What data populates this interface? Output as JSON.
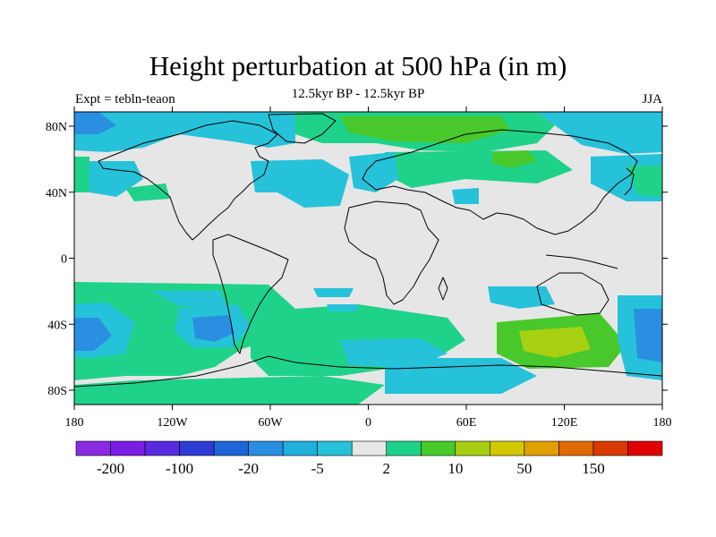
{
  "title": "Height perturbation at 500 hPa (in m)",
  "subtitle": "12.5kyr BP - 12.5kyr BP",
  "left_label": "Expt = tebln-teaon",
  "right_label": "JJA",
  "lat_ticks": [
    "80N",
    "40N",
    "0",
    "40S",
    "80S"
  ],
  "lon_ticks": [
    "180",
    "120W",
    "60W",
    "0",
    "60E",
    "120E",
    "180"
  ],
  "colorbar": {
    "colors": [
      "#8a2be2",
      "#7a1ee6",
      "#5a2be0",
      "#2e3cd6",
      "#1e66d8",
      "#2a8fe0",
      "#1fb0dc",
      "#26c2da",
      "#e6e6e6",
      "#1fd28a",
      "#48c82a",
      "#a8d012",
      "#d2c800",
      "#e0a000",
      "#e06a00",
      "#d83a00",
      "#e00000"
    ],
    "labels": [
      "-200",
      "-100",
      "-20",
      "-5",
      "2",
      "10",
      "50",
      "150"
    ]
  }
}
